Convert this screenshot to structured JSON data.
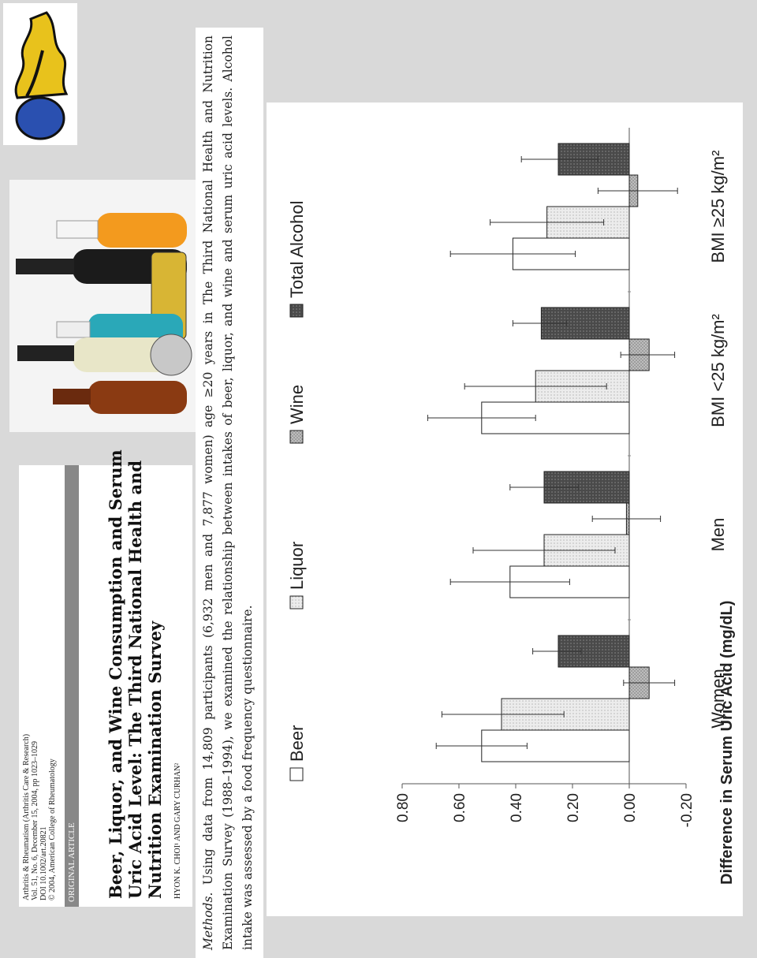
{
  "journal": {
    "line1": "Arthritis & Rheumatism (Arthritis Care & Research)",
    "line2": "Vol. 51, No. 6, December 15, 2004, pp 1023–1029",
    "line3": "DOI 10.1002/art.20821",
    "line4": "© 2004, American College of Rheumatology"
  },
  "article": {
    "section": "ORIGINAL ARTICLE",
    "title_line1": "Beer, Liquor, and Wine Consumption and Serum",
    "title_line2": "Uric Acid Level: The Third National Health and",
    "title_line3": "Nutrition Examination Survey",
    "authors": "HYON K. CHOI¹ AND GARY CURHAN²"
  },
  "methods": {
    "label": "Methods.",
    "text": "Using data from 14,809 participants (6,932 men and 7,877 women) age ≥20 years in The Third National Health and Nutrition Examination Survey (1988–1994), we examined the relationship between intakes of beer, liquor, and wine and serum uric acid levels. Alcohol intake was assessed by a food frequency questionnaire."
  },
  "colors": {
    "beer": "#ffffff",
    "liquor": "#ececec",
    "wine": "#bdbdbd",
    "total": "#4a4a4a",
    "error_bar": "#333333"
  },
  "chart_data": {
    "type": "bar",
    "ylabel": "Difference in Serum Uric Acid (mg/dL)",
    "ylim": [
      -0.2,
      0.8
    ],
    "yticks": [
      "0.80",
      "0.60",
      "0.40",
      "0.20",
      "0.00",
      "-0.20"
    ],
    "ytick_values": [
      0.8,
      0.6,
      0.4,
      0.2,
      0.0,
      -0.2
    ],
    "categories": [
      "Women",
      "Men",
      "BMI <25 kg/m²",
      "BMI ≥25 kg/m²"
    ],
    "legend_position": "top",
    "series": [
      {
        "name": "Beer",
        "values": [
          0.52,
          0.42,
          0.52,
          0.41
        ],
        "err_low": [
          0.36,
          0.21,
          0.33,
          0.19
        ],
        "err_high": [
          0.68,
          0.63,
          0.71,
          0.63
        ]
      },
      {
        "name": "Liquor",
        "values": [
          0.45,
          0.3,
          0.33,
          0.29
        ],
        "err_low": [
          0.23,
          0.05,
          0.08,
          0.09
        ],
        "err_high": [
          0.66,
          0.55,
          0.58,
          0.49
        ]
      },
      {
        "name": "Wine",
        "values": [
          -0.07,
          0.01,
          -0.07,
          -0.03
        ],
        "err_low": [
          -0.16,
          -0.11,
          -0.16,
          -0.17
        ],
        "err_high": [
          0.02,
          0.13,
          0.03,
          0.11
        ]
      },
      {
        "name": "Total Alcohol",
        "values": [
          0.25,
          0.3,
          0.31,
          0.25
        ],
        "err_low": [
          0.17,
          0.18,
          0.22,
          0.11
        ],
        "err_high": [
          0.34,
          0.42,
          0.41,
          0.38
        ]
      }
    ]
  }
}
